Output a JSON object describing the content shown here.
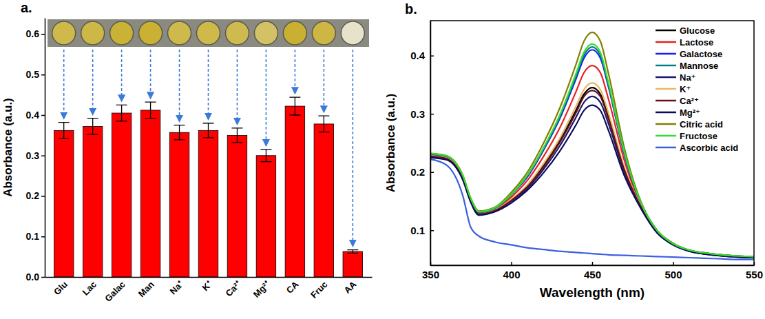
{
  "chart_data": [
    {
      "type": "bar",
      "title": "a.",
      "categories": [
        "Glu",
        "Lac",
        "Galac",
        "Man",
        "Na⁺",
        "K⁺",
        "Ca²⁺",
        "Mg²⁺",
        "CA",
        "Fruc",
        "AA"
      ],
      "values": [
        0.362,
        0.372,
        0.405,
        0.412,
        0.357,
        0.362,
        0.35,
        0.3,
        0.422,
        0.378,
        0.063
      ],
      "errors": [
        0.02,
        0.02,
        0.02,
        0.02,
        0.018,
        0.018,
        0.018,
        0.015,
        0.022,
        0.02,
        0.004
      ],
      "color": "#ff0000",
      "ylabel": "Absorbance (a.u.)",
      "ylim": [
        0,
        0.64
      ],
      "yticks": [
        {
          "value": 0,
          "label": "0.0"
        },
        0.1,
        0.2,
        0.3,
        0.4,
        0.5,
        0.6
      ]
    },
    {
      "type": "line",
      "title": "b.",
      "xlabel": "Wavelength (nm)",
      "ylabel": "Absorbance (a.u.)",
      "x": [
        350,
        360,
        370,
        375,
        380,
        390,
        400,
        410,
        420,
        430,
        440,
        445,
        450,
        455,
        460,
        470,
        480,
        490,
        500,
        510,
        520,
        530,
        540,
        550
      ],
      "xlim": [
        350,
        550
      ],
      "xticks": [
        350,
        400,
        450,
        500,
        550
      ],
      "ylim": [
        0.04,
        0.46
      ],
      "yticks": [
        0.1,
        0.2,
        0.3,
        0.4
      ],
      "legend": "top-right",
      "series": [
        {
          "name": "Glucose",
          "color": "#000000",
          "values": [
            0.228,
            0.224,
            0.19,
            0.15,
            0.128,
            0.134,
            0.152,
            0.176,
            0.211,
            0.254,
            0.306,
            0.334,
            0.345,
            0.334,
            0.296,
            0.204,
            0.141,
            0.098,
            0.076,
            0.065,
            0.06,
            0.057,
            0.055,
            0.054
          ]
        },
        {
          "name": "Lactose",
          "color": "#e8201e",
          "values": [
            0.23,
            0.226,
            0.192,
            0.152,
            0.13,
            0.136,
            0.157,
            0.186,
            0.227,
            0.276,
            0.338,
            0.371,
            0.383,
            0.371,
            0.326,
            0.219,
            0.145,
            0.099,
            0.077,
            0.065,
            0.06,
            0.057,
            0.055,
            0.054
          ]
        },
        {
          "name": "Galactose",
          "color": "#1a1aff",
          "values": [
            0.231,
            0.227,
            0.193,
            0.153,
            0.131,
            0.138,
            0.161,
            0.192,
            0.238,
            0.292,
            0.36,
            0.396,
            0.41,
            0.396,
            0.347,
            0.229,
            0.147,
            0.1,
            0.077,
            0.066,
            0.061,
            0.058,
            0.056,
            0.055
          ]
        },
        {
          "name": "Mannose",
          "color": "#008080",
          "values": [
            0.231,
            0.227,
            0.193,
            0.153,
            0.131,
            0.138,
            0.161,
            0.194,
            0.24,
            0.295,
            0.364,
            0.401,
            0.415,
            0.401,
            0.35,
            0.231,
            0.148,
            0.1,
            0.077,
            0.066,
            0.061,
            0.058,
            0.056,
            0.055
          ]
        },
        {
          "name": "Na⁺",
          "color": "#1a1a6e",
          "values": [
            0.226,
            0.222,
            0.188,
            0.149,
            0.127,
            0.133,
            0.15,
            0.172,
            0.205,
            0.245,
            0.294,
            0.32,
            0.33,
            0.32,
            0.284,
            0.199,
            0.14,
            0.097,
            0.075,
            0.064,
            0.059,
            0.056,
            0.054,
            0.053
          ]
        },
        {
          "name": "K⁺",
          "color": "#e6b862",
          "values": [
            0.228,
            0.224,
            0.19,
            0.15,
            0.128,
            0.135,
            0.153,
            0.178,
            0.215,
            0.258,
            0.313,
            0.342,
            0.353,
            0.342,
            0.302,
            0.207,
            0.142,
            0.098,
            0.076,
            0.065,
            0.06,
            0.057,
            0.055,
            0.054
          ]
        },
        {
          "name": "Ca²⁺",
          "color": "#6b0f1a",
          "values": [
            0.227,
            0.223,
            0.189,
            0.15,
            0.128,
            0.134,
            0.151,
            0.175,
            0.209,
            0.251,
            0.302,
            0.33,
            0.34,
            0.33,
            0.292,
            0.203,
            0.141,
            0.097,
            0.076,
            0.065,
            0.06,
            0.057,
            0.055,
            0.054
          ]
        },
        {
          "name": "Mg²⁺",
          "color": "#0b0b5e",
          "values": [
            0.225,
            0.221,
            0.187,
            0.148,
            0.126,
            0.132,
            0.147,
            0.169,
            0.199,
            0.236,
            0.281,
            0.306,
            0.315,
            0.306,
            0.272,
            0.193,
            0.138,
            0.096,
            0.075,
            0.064,
            0.059,
            0.056,
            0.054,
            0.053
          ]
        },
        {
          "name": "Citric acid",
          "color": "#808000",
          "values": [
            0.232,
            0.228,
            0.195,
            0.155,
            0.133,
            0.14,
            0.165,
            0.2,
            0.25,
            0.31,
            0.385,
            0.425,
            0.44,
            0.425,
            0.37,
            0.24,
            0.15,
            0.1,
            0.078,
            0.066,
            0.061,
            0.058,
            0.056,
            0.055
          ]
        },
        {
          "name": "Fructose",
          "color": "#33dd33",
          "values": [
            0.232,
            0.228,
            0.194,
            0.154,
            0.132,
            0.139,
            0.162,
            0.195,
            0.242,
            0.298,
            0.369,
            0.406,
            0.42,
            0.406,
            0.354,
            0.233,
            0.148,
            0.1,
            0.077,
            0.066,
            0.061,
            0.058,
            0.056,
            0.055
          ]
        },
        {
          "name": "Ascorbic acid",
          "color": "#3a5fe0",
          "values": [
            0.222,
            0.212,
            0.16,
            0.105,
            0.09,
            0.08,
            0.075,
            0.07,
            0.067,
            0.064,
            0.062,
            0.061,
            0.06,
            0.059,
            0.058,
            0.057,
            0.056,
            0.055,
            0.054,
            0.053,
            0.052,
            0.051,
            0.05,
            0.05
          ]
        }
      ]
    }
  ]
}
